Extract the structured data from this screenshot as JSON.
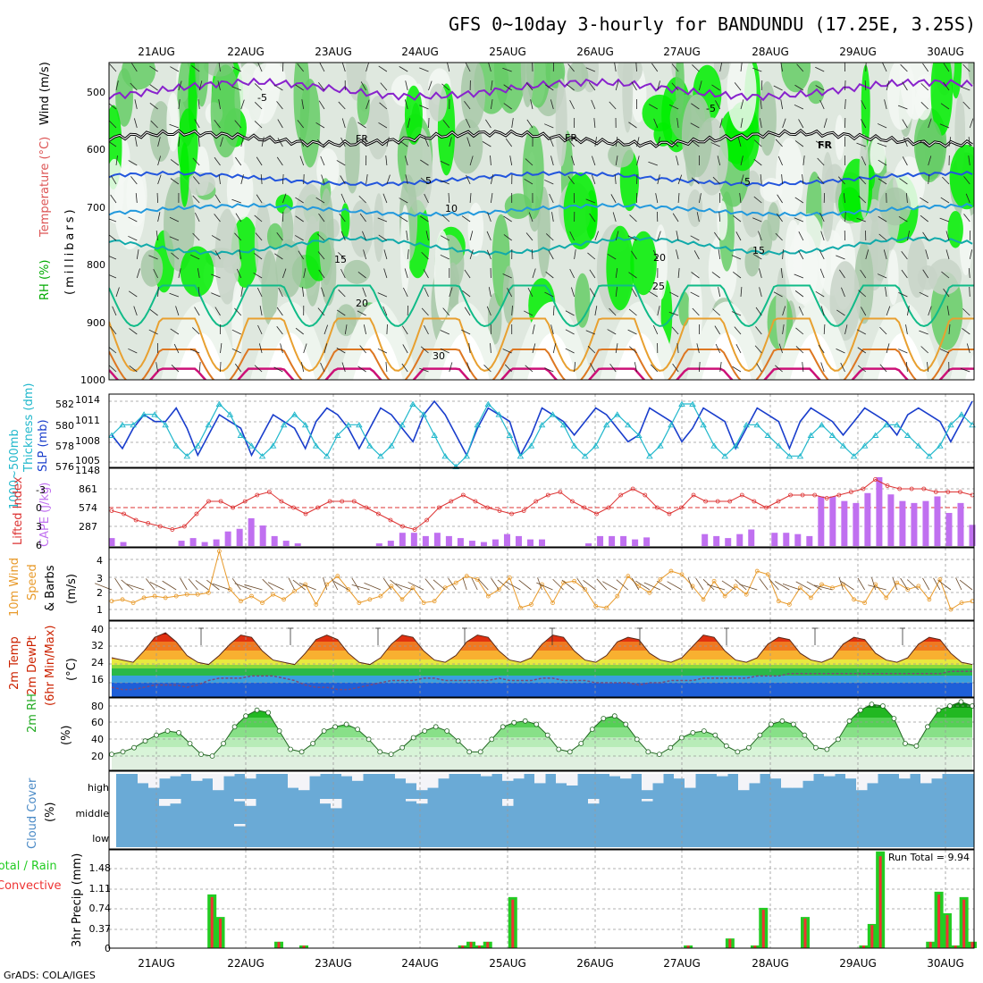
{
  "title": "GFS 0~10day 3-hourly for BANDUNDU (17.25E, 3.25S)",
  "footer": "GrADS: COLA/IGES",
  "dates": [
    "21AUG",
    "22AUG",
    "23AUG",
    "24AUG",
    "25AUG",
    "26AUG",
    "27AUG",
    "28AUG",
    "29AUG",
    "30AUG"
  ],
  "colors": {
    "rh_green": "#33cc33",
    "rh_bright": "#00ff00",
    "slp": "#1a3ecc",
    "thickness": "#22b8cc",
    "lifted": "#dd3333",
    "cape": "#c070f0",
    "wind": "#e89a2a",
    "temp": "#cc2200",
    "cloud": "#6aaad6",
    "precip_total": "#22cc22",
    "precip_conv": "#ee3333"
  },
  "panels": {
    "upper": {
      "ylabel_rh": "RH (%)",
      "ylabel_temp": "Temperature (°C)",
      "ylabel_wind": "Wind (m/s)",
      "ylabel_p": "(millibars)",
      "yticks": [
        "500",
        "600",
        "700",
        "800",
        "900",
        "1000"
      ],
      "isotherm_labels": [
        "-5",
        "FR",
        "5",
        "10",
        "15",
        "20",
        "25"
      ],
      "extra_labels": [
        "-5",
        "FR",
        "FR",
        "5",
        "15",
        "20",
        "25",
        "30"
      ]
    },
    "slp": {
      "ylabel_a": "1000~500mb",
      "ylabel_b": "Thickness (dm)",
      "ylabel_c": "SLP (mb)",
      "left_ticks": [
        "582",
        "580",
        "578",
        "576"
      ],
      "right_ticks": [
        "1014",
        "1011",
        "1008",
        "1005"
      ]
    },
    "li": {
      "ylabel_a": "Lifted Index",
      "ylabel_b": "CAPE (J/kg)",
      "left_ticks": [
        "-3",
        "0",
        "3",
        "6"
      ],
      "right_ticks": [
        "1148",
        "861",
        "574",
        "287"
      ]
    },
    "wind10": {
      "ylabel_a": "10m Wind",
      "ylabel_b": "Speed",
      "ylabel_c": "& Barbs",
      "ylabel_d": "(m/s)",
      "ticks": [
        "4",
        "3",
        "2",
        "1"
      ]
    },
    "temp": {
      "ylabel_a": "2m Temp",
      "ylabel_b": "2m DewPt",
      "ylabel_c": "(6hr Min/Max)",
      "ylabel_d": "(°C)",
      "ticks": [
        "40",
        "32",
        "24",
        "16"
      ]
    },
    "rh2m": {
      "ylabel_a": "2m RH",
      "ylabel_b": "(%)",
      "ticks": [
        "80",
        "60",
        "40",
        "20"
      ]
    },
    "cloud": {
      "ylabel_a": "Cloud Cover",
      "ylabel_b": "(%)",
      "levels": [
        "high",
        "middle",
        "low"
      ]
    },
    "precip": {
      "ylabel_a": "Total / Rain",
      "ylabel_b": "Convective",
      "ylabel_c": "3hr Precip (mm)",
      "ticks": [
        "1.48",
        "1.11",
        "0.74",
        "0.37",
        "0"
      ],
      "run_total": "Run Total = 9.94"
    }
  },
  "chart_data": {
    "type": "meteogram",
    "slp_mb": [
      1009,
      1007,
      1010,
      1012,
      1011,
      1011,
      1013,
      1010,
      1006,
      1009,
      1012,
      1011,
      1010,
      1006,
      1009,
      1012,
      1011,
      1010,
      1007,
      1011,
      1013,
      1012,
      1010,
      1007,
      1010,
      1013,
      1012,
      1010,
      1008,
      1012,
      1014,
      1012,
      1009,
      1006,
      1010,
      1013,
      1012,
      1011,
      1006,
      1009,
      1013,
      1012,
      1011,
      1009,
      1011,
      1013,
      1012,
      1010,
      1008,
      1009,
      1013,
      1012,
      1011,
      1008,
      1010,
      1013,
      1012,
      1011,
      1007,
      1010,
      1013,
      1012,
      1011,
      1007,
      1011,
      1013,
      1012,
      1011,
      1009,
      1011,
      1013,
      1012,
      1011,
      1009,
      1012,
      1013,
      1012,
      1011,
      1008,
      1011,
      1014
    ],
    "thickness_dm": [
      579,
      580,
      580,
      581,
      581,
      580,
      578,
      577,
      578,
      580,
      582,
      581,
      579,
      578,
      577,
      578,
      580,
      581,
      580,
      578,
      577,
      579,
      580,
      580,
      578,
      577,
      578,
      580,
      582,
      581,
      579,
      577,
      576,
      577,
      580,
      582,
      581,
      579,
      577,
      578,
      580,
      581,
      580,
      578,
      577,
      578,
      580,
      581,
      580,
      579,
      577,
      578,
      580,
      582,
      582,
      580,
      578,
      577,
      578,
      580,
      580,
      579,
      578,
      577,
      577,
      579,
      580,
      579,
      578,
      577,
      578,
      579,
      580,
      580,
      579,
      578,
      577,
      578,
      580,
      581,
      580
    ],
    "lifted_index": [
      0.5,
      1,
      2,
      2.5,
      3,
      3.5,
      3,
      1,
      -1,
      -1,
      0,
      -1,
      -2,
      -2.5,
      -1,
      0,
      1,
      0,
      -1,
      -1,
      -1,
      0,
      1,
      2,
      3,
      3.5,
      2,
      0,
      -1,
      -2,
      -1,
      0,
      0.5,
      1,
      0.5,
      -1,
      -2,
      -2.5,
      -1,
      0,
      1,
      0,
      -2,
      -3,
      -2,
      0,
      1,
      0,
      -2,
      -1,
      -1,
      -1,
      -2,
      -1,
      0,
      -1,
      -2,
      -2,
      -2,
      -1.5,
      -2,
      -2.5,
      -3,
      -4.5,
      -3.5,
      -3,
      -3,
      -3,
      -2.5,
      -2.5,
      -2.5,
      -2
    ],
    "cape_jkg": [
      120,
      60,
      0,
      0,
      0,
      0,
      80,
      120,
      60,
      100,
      220,
      260,
      420,
      310,
      150,
      80,
      40,
      0,
      0,
      0,
      0,
      0,
      0,
      40,
      80,
      200,
      200,
      150,
      200,
      150,
      120,
      80,
      60,
      100,
      180,
      150,
      100,
      100,
      0,
      0,
      0,
      40,
      150,
      150,
      150,
      100,
      130,
      0,
      0,
      0,
      0,
      180,
      150,
      120,
      180,
      250,
      0,
      200,
      200,
      180,
      150,
      750,
      750,
      680,
      650,
      800,
      1040,
      780,
      680,
      650,
      680,
      750,
      500,
      650,
      320
    ],
    "wind10_ms": [
      1.5,
      1.6,
      1.4,
      1.7,
      1.8,
      1.7,
      1.8,
      1.9,
      1.9,
      2.0,
      4.5,
      2.2,
      1.5,
      1.8,
      1.4,
      1.9,
      1.6,
      2.1,
      2.5,
      1.3,
      2.5,
      3.0,
      2.2,
      1.4,
      1.6,
      1.8,
      2.4,
      1.6,
      2.3,
      1.4,
      1.5,
      2.3,
      2.6,
      3.0,
      2.8,
      1.8,
      2.2,
      2.9,
      1.1,
      1.3,
      2.5,
      1.4,
      2.6,
      2.7,
      2.2,
      1.2,
      1.1,
      1.8,
      3.0,
      2.4,
      2.0,
      2.8,
      3.3,
      3.1,
      2.4,
      1.6,
      2.7,
      1.8,
      2.4,
      1.9,
      3.3,
      3.1,
      1.5,
      1.3,
      2.3,
      1.7,
      2.5,
      2.3,
      2.5,
      1.6,
      1.4,
      2.5,
      1.7,
      2.6,
      2.2,
      2.4,
      1.6,
      2.8,
      1.0,
      1.4,
      1.5
    ],
    "temp2m_c": [
      27,
      26,
      25,
      30,
      36,
      38,
      34,
      28,
      25,
      24,
      28,
      33,
      37,
      36,
      30,
      26,
      25,
      24,
      29,
      35,
      37,
      35,
      29,
      25,
      24,
      27,
      33,
      37,
      36,
      30,
      26,
      25,
      28,
      34,
      37,
      36,
      30,
      26,
      25,
      27,
      33,
      37,
      36,
      30,
      26,
      25,
      28,
      34,
      36,
      35,
      29,
      26,
      25,
      27,
      32,
      37,
      36,
      30,
      26,
      25,
      27,
      33,
      36,
      35,
      29,
      26,
      25,
      27,
      33,
      36,
      35,
      29,
      26,
      25,
      27,
      33,
      36,
      35,
      29,
      25,
      24
    ],
    "dewpt2m_c": [
      14,
      13,
      13,
      14,
      15,
      15,
      15,
      14,
      15,
      17,
      18,
      18,
      18,
      19,
      19,
      19,
      18,
      17,
      15,
      14,
      14,
      13,
      13,
      14,
      15,
      16,
      17,
      17,
      17,
      18,
      18,
      17,
      17,
      17,
      17,
      17,
      18,
      17,
      17,
      17,
      18,
      18,
      17,
      17,
      17,
      16,
      16,
      16,
      16,
      15,
      16,
      16,
      17,
      17,
      17,
      18,
      18,
      18,
      18,
      18,
      19,
      19,
      19,
      20,
      20,
      20,
      20,
      20,
      20,
      20,
      20,
      20,
      20,
      20,
      20,
      20,
      20,
      20,
      21,
      21,
      21
    ],
    "rh2m_pct": [
      22,
      25,
      30,
      38,
      45,
      50,
      48,
      35,
      22,
      20,
      35,
      55,
      68,
      75,
      72,
      50,
      28,
      25,
      35,
      50,
      55,
      58,
      52,
      40,
      25,
      22,
      30,
      42,
      50,
      55,
      50,
      38,
      25,
      25,
      40,
      55,
      60,
      62,
      58,
      45,
      28,
      25,
      35,
      52,
      65,
      68,
      58,
      40,
      25,
      22,
      30,
      42,
      48,
      50,
      45,
      32,
      25,
      30,
      45,
      58,
      62,
      58,
      45,
      30,
      28,
      40,
      62,
      75,
      82,
      80,
      65,
      35,
      32,
      55,
      75,
      80,
      85,
      80
    ],
    "precip_total_mm": [
      0,
      0,
      0,
      0,
      0,
      0,
      0,
      0,
      0,
      0,
      0,
      0,
      1.0,
      0.58,
      0,
      0,
      0,
      0,
      0,
      0,
      0.12,
      0,
      0,
      0.05,
      0,
      0,
      0,
      0,
      0,
      0,
      0,
      0,
      0,
      0,
      0,
      0,
      0,
      0,
      0,
      0,
      0,
      0,
      0.05,
      0.12,
      0.05,
      0.12,
      0,
      0,
      0.95,
      0,
      0,
      0,
      0,
      0,
      0,
      0,
      0,
      0,
      0,
      0,
      0,
      0,
      0,
      0,
      0,
      0,
      0,
      0,
      0,
      0.05,
      0,
      0,
      0,
      0,
      0.18,
      0,
      0,
      0.05,
      0.75,
      0,
      0,
      0,
      0,
      0.58,
      0,
      0,
      0,
      0,
      0,
      0,
      0.05,
      0.45,
      1.8,
      0,
      0,
      0,
      0,
      0,
      0.12,
      1.05,
      0.65,
      0.05,
      0.95,
      0.12
    ],
    "cloud_high_pct": [
      100,
      100,
      60,
      40,
      80,
      90,
      100,
      70,
      80,
      30,
      90,
      100,
      80,
      100,
      100,
      100,
      40,
      30,
      90,
      100,
      100,
      90,
      70,
      100,
      100,
      100,
      80,
      60,
      30,
      40,
      80,
      100,
      100,
      100,
      90,
      100,
      70,
      80,
      100,
      60,
      100,
      60,
      50,
      100,
      100,
      100,
      90,
      80,
      100,
      30,
      60,
      100,
      80,
      40,
      100,
      100,
      90,
      100,
      30,
      60,
      100,
      80,
      40,
      40,
      70,
      100,
      90,
      100,
      80,
      30,
      60,
      100,
      100,
      80,
      100,
      60,
      80,
      100,
      100,
      100
    ],
    "cloud_mid_pct": [
      100,
      100,
      100,
      100,
      70,
      80,
      100,
      100,
      100,
      100,
      100,
      90,
      70,
      100,
      100,
      100,
      100,
      100,
      100,
      80,
      60,
      100,
      100,
      100,
      100,
      100,
      100,
      90,
      80,
      100,
      100,
      100,
      100,
      100,
      100,
      100,
      70,
      100,
      100,
      100,
      100,
      100,
      100,
      100,
      80,
      100,
      100,
      100,
      100,
      90,
      100,
      100,
      100,
      100,
      100,
      100,
      100,
      100,
      100,
      100,
      100,
      100,
      100,
      100,
      100,
      100,
      100,
      100,
      100,
      100,
      100,
      100,
      100,
      100,
      100,
      100,
      100,
      100,
      100,
      100
    ],
    "cloud_low_pct": [
      100,
      100,
      100,
      100,
      100,
      100,
      100,
      100,
      100,
      100,
      100,
      90,
      100,
      100,
      100,
      100,
      100,
      100,
      100,
      100,
      100,
      100,
      100,
      100,
      100,
      100,
      100,
      100,
      100,
      100,
      100,
      100,
      100,
      100,
      100,
      100,
      100,
      100,
      100,
      100,
      100,
      100,
      100,
      100,
      100,
      100,
      100,
      100,
      100,
      100,
      100,
      100,
      100,
      100,
      100,
      100,
      100,
      100,
      100,
      100,
      100,
      100,
      100,
      100,
      100,
      100,
      100,
      100,
      100,
      100,
      100,
      100,
      100,
      100,
      100,
      100,
      100,
      100,
      100,
      100
    ]
  }
}
